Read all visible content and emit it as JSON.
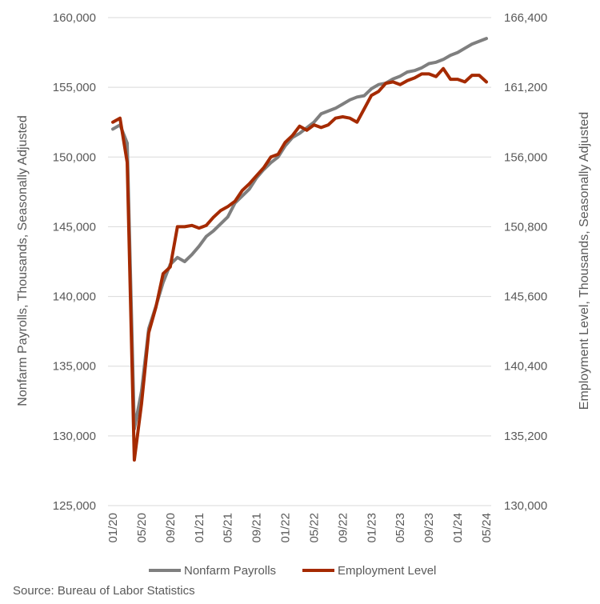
{
  "chart_data": {
    "type": "line",
    "source": "Source: Bureau of Labor Statistics",
    "y_left": {
      "label": "Nonfarm Payrolls, Thousands, Seasonally Adjusted",
      "lim": [
        125000,
        160000
      ],
      "ticks": [
        "125,000",
        "130,000",
        "135,000",
        "140,000",
        "145,000",
        "150,000",
        "155,000",
        "160,000"
      ]
    },
    "y_right": {
      "label": "Employment Level, Thousands, Seasonally Adjusted",
      "lim": [
        130000,
        166400
      ],
      "ticks": [
        "130,000",
        "135,200",
        "140,400",
        "145,600",
        "150,800",
        "156,000",
        "161,200",
        "166,400"
      ]
    },
    "x_ticks": [
      "01/20",
      "05/20",
      "09/20",
      "01/21",
      "05/21",
      "09/21",
      "01/22",
      "05/22",
      "09/22",
      "01/23",
      "05/23",
      "09/23",
      "01/24",
      "05/24"
    ],
    "x": [
      "01/20",
      "02/20",
      "03/20",
      "04/20",
      "05/20",
      "06/20",
      "07/20",
      "08/20",
      "09/20",
      "10/20",
      "11/20",
      "12/20",
      "01/21",
      "02/21",
      "03/21",
      "04/21",
      "05/21",
      "06/21",
      "07/21",
      "08/21",
      "09/21",
      "10/21",
      "11/21",
      "12/21",
      "01/22",
      "02/22",
      "03/22",
      "04/22",
      "05/22",
      "06/22",
      "07/22",
      "08/22",
      "09/22",
      "10/22",
      "11/22",
      "12/22",
      "01/23",
      "02/23",
      "03/23",
      "04/23",
      "05/23",
      "06/23",
      "07/23",
      "08/23",
      "09/23",
      "10/23",
      "11/23",
      "12/23",
      "01/24",
      "02/24",
      "03/24",
      "04/24",
      "05/24"
    ],
    "series": [
      {
        "name": "Nonfarm Payrolls",
        "axis": "left",
        "color": "#7f7f7f",
        "values": [
          152000,
          152300,
          151000,
          130500,
          133200,
          137700,
          139300,
          141000,
          142300,
          142800,
          142500,
          143000,
          143600,
          144300,
          144700,
          145200,
          145700,
          146700,
          147200,
          147700,
          148500,
          149100,
          149600,
          150000,
          150800,
          151400,
          151700,
          152100,
          152500,
          153100,
          153300,
          153500,
          153800,
          154100,
          154300,
          154400,
          154900,
          155200,
          155300,
          155600,
          155800,
          156100,
          156200,
          156400,
          156700,
          156800,
          157000,
          157300,
          157500,
          157800,
          158100,
          158300,
          158500
        ]
      },
      {
        "name": "Employment Level",
        "axis": "right",
        "color": "#a52a00",
        "values": [
          158600,
          158900,
          155600,
          133400,
          137600,
          142900,
          144800,
          147300,
          147800,
          150800,
          150800,
          150900,
          150700,
          150900,
          151500,
          152000,
          152300,
          152700,
          153500,
          154000,
          154600,
          155200,
          156000,
          156200,
          157100,
          157600,
          158300,
          158000,
          158400,
          158200,
          158400,
          158900,
          159000,
          158900,
          158600,
          159600,
          160600,
          160900,
          161500,
          161600,
          161400,
          161700,
          161900,
          162200,
          162200,
          162000,
          162600,
          161800,
          161800,
          161600,
          162100,
          162100,
          161600
        ]
      }
    ]
  }
}
